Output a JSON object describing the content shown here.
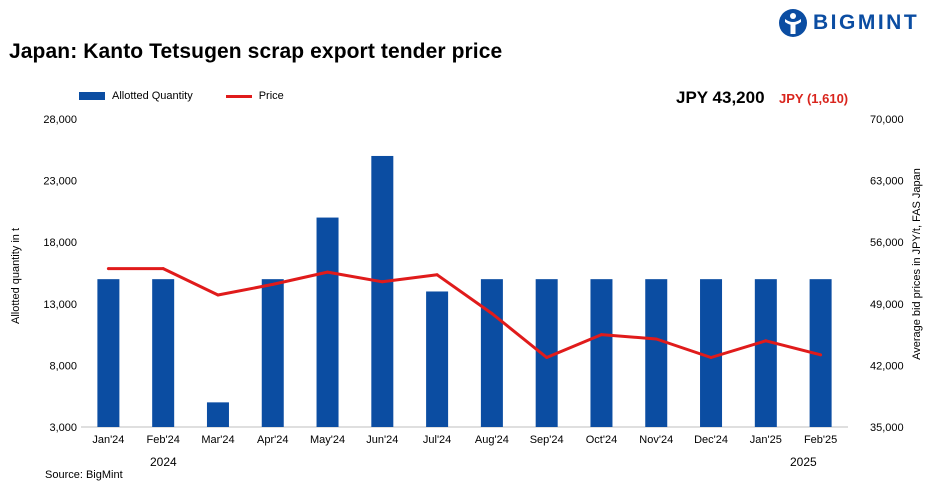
{
  "header": {
    "title": "Japan: Kanto Tetsugen scrap export tender price",
    "brand": "BIGMINT",
    "source": "Source: BigMint"
  },
  "price_box": {
    "value": "JPY 43,200",
    "change": "JPY (1,610)"
  },
  "colors": {
    "bar": "#0b4da2",
    "line": "#e01b1b",
    "brand": "#0b4da2",
    "change": "#d9251d"
  },
  "chart_data": {
    "type": "bar",
    "categories": [
      "Jan'24",
      "Feb'24",
      "Mar'24",
      "Apr'24",
      "May'24",
      "Jun'24",
      "Jul'24",
      "Aug'24",
      "Sep'24",
      "Oct'24",
      "Nov'24",
      "Dec'24",
      "Jan'25",
      "Feb'25"
    ],
    "year_labels": [
      "2024",
      "2025"
    ],
    "series": [
      {
        "name": "Allotted Quantity",
        "type": "bar",
        "axis": "left",
        "values": [
          15000,
          15000,
          5000,
          15000,
          20000,
          25000,
          14000,
          15000,
          15000,
          15000,
          15000,
          15000,
          15000,
          15000
        ]
      },
      {
        "name": "Price",
        "type": "line",
        "axis": "right",
        "values": [
          53000,
          53000,
          50000,
          51200,
          52600,
          51500,
          52300,
          47900,
          42900,
          45500,
          45000,
          42900,
          44800,
          43200
        ]
      }
    ],
    "ylabel": "Allotted quantity in t",
    "y2label": "Average bid prices in JPY/t, FAS Japan",
    "ylim": [
      3000,
      28000
    ],
    "y2lim": [
      35000,
      70000
    ],
    "yticks": [
      "3,000",
      "8,000",
      "13,000",
      "18,000",
      "23,000",
      "28,000"
    ],
    "y2ticks": [
      "35,000",
      "42,000",
      "49,000",
      "56,000",
      "63,000",
      "70,000"
    ],
    "legend": "top-left",
    "grid": false
  }
}
